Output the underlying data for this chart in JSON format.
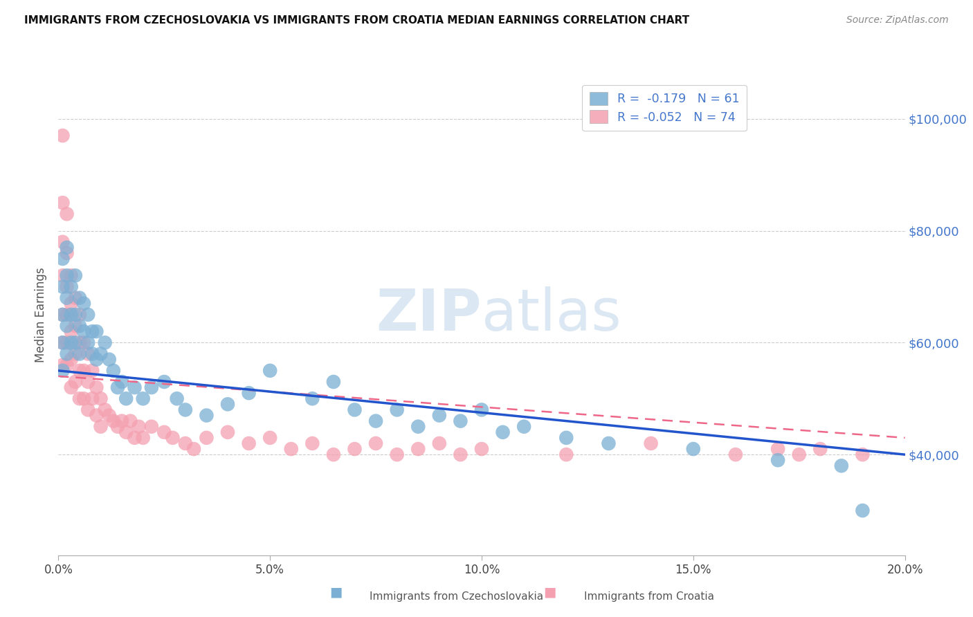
{
  "title": "IMMIGRANTS FROM CZECHOSLOVAKIA VS IMMIGRANTS FROM CROATIA MEDIAN EARNINGS CORRELATION CHART",
  "source": "Source: ZipAtlas.com",
  "ylabel": "Median Earnings",
  "xlim": [
    0.0,
    0.2
  ],
  "ylim": [
    22000,
    108000
  ],
  "yticks": [
    40000,
    60000,
    80000,
    100000
  ],
  "ytick_labels": [
    "$40,000",
    "$60,000",
    "$80,000",
    "$100,000"
  ],
  "xticks": [
    0.0,
    0.05,
    0.1,
    0.15,
    0.2
  ],
  "xtick_labels": [
    "0.0%",
    "5.0%",
    "10.0%",
    "15.0%",
    "20.0%"
  ],
  "blue_label": "Immigrants from Czechoslovakia",
  "pink_label": "Immigrants from Croatia",
  "blue_R": -0.179,
  "blue_N": 61,
  "pink_R": -0.052,
  "pink_N": 74,
  "blue_color": "#7BAFD4",
  "pink_color": "#F4A0B0",
  "trend_blue_color": "#2255CC",
  "trend_pink_color": "#EE6688",
  "background_color": "#FFFFFF",
  "grid_color": "#CCCCCC",
  "axis_label_color": "#4477CC",
  "watermark_zip": "ZIP",
  "watermark_atlas": "atlas",
  "blue_x": [
    0.001,
    0.001,
    0.001,
    0.001,
    0.001,
    0.002,
    0.002,
    0.002,
    0.002,
    0.002,
    0.003,
    0.003,
    0.003,
    0.004,
    0.004,
    0.004,
    0.005,
    0.005,
    0.005,
    0.006,
    0.006,
    0.007,
    0.007,
    0.008,
    0.008,
    0.009,
    0.009,
    0.01,
    0.011,
    0.012,
    0.013,
    0.014,
    0.015,
    0.016,
    0.018,
    0.02,
    0.022,
    0.025,
    0.028,
    0.03,
    0.035,
    0.04,
    0.045,
    0.05,
    0.06,
    0.065,
    0.07,
    0.075,
    0.08,
    0.085,
    0.09,
    0.095,
    0.1,
    0.105,
    0.11,
    0.12,
    0.13,
    0.15,
    0.17,
    0.185,
    0.19
  ],
  "blue_y": [
    55000,
    60000,
    65000,
    70000,
    75000,
    58000,
    63000,
    68000,
    72000,
    77000,
    60000,
    65000,
    70000,
    60000,
    65000,
    72000,
    58000,
    63000,
    68000,
    62000,
    67000,
    60000,
    65000,
    58000,
    62000,
    57000,
    62000,
    58000,
    60000,
    57000,
    55000,
    52000,
    53000,
    50000,
    52000,
    50000,
    52000,
    53000,
    50000,
    48000,
    47000,
    49000,
    51000,
    55000,
    50000,
    53000,
    48000,
    46000,
    48000,
    45000,
    47000,
    46000,
    48000,
    44000,
    45000,
    43000,
    42000,
    41000,
    39000,
    38000,
    30000
  ],
  "pink_x": [
    0.001,
    0.001,
    0.001,
    0.001,
    0.001,
    0.001,
    0.001,
    0.002,
    0.002,
    0.002,
    0.002,
    0.002,
    0.002,
    0.003,
    0.003,
    0.003,
    0.003,
    0.003,
    0.004,
    0.004,
    0.004,
    0.004,
    0.005,
    0.005,
    0.005,
    0.005,
    0.006,
    0.006,
    0.006,
    0.007,
    0.007,
    0.007,
    0.008,
    0.008,
    0.009,
    0.009,
    0.01,
    0.01,
    0.011,
    0.012,
    0.013,
    0.014,
    0.015,
    0.016,
    0.017,
    0.018,
    0.019,
    0.02,
    0.022,
    0.025,
    0.027,
    0.03,
    0.032,
    0.035,
    0.04,
    0.045,
    0.05,
    0.055,
    0.06,
    0.065,
    0.07,
    0.075,
    0.08,
    0.085,
    0.09,
    0.095,
    0.1,
    0.12,
    0.14,
    0.16,
    0.17,
    0.175,
    0.18,
    0.19
  ],
  "pink_y": [
    97000,
    85000,
    78000,
    72000,
    65000,
    60000,
    56000,
    83000,
    76000,
    70000,
    65000,
    60000,
    56000,
    72000,
    67000,
    62000,
    57000,
    52000,
    68000,
    63000,
    58000,
    53000,
    65000,
    60000,
    55000,
    50000,
    60000,
    55000,
    50000,
    58000,
    53000,
    48000,
    55000,
    50000,
    52000,
    47000,
    50000,
    45000,
    48000,
    47000,
    46000,
    45000,
    46000,
    44000,
    46000,
    43000,
    45000,
    43000,
    45000,
    44000,
    43000,
    42000,
    41000,
    43000,
    44000,
    42000,
    43000,
    41000,
    42000,
    40000,
    41000,
    42000,
    40000,
    41000,
    42000,
    40000,
    41000,
    40000,
    42000,
    40000,
    41000,
    40000,
    41000,
    40000
  ]
}
